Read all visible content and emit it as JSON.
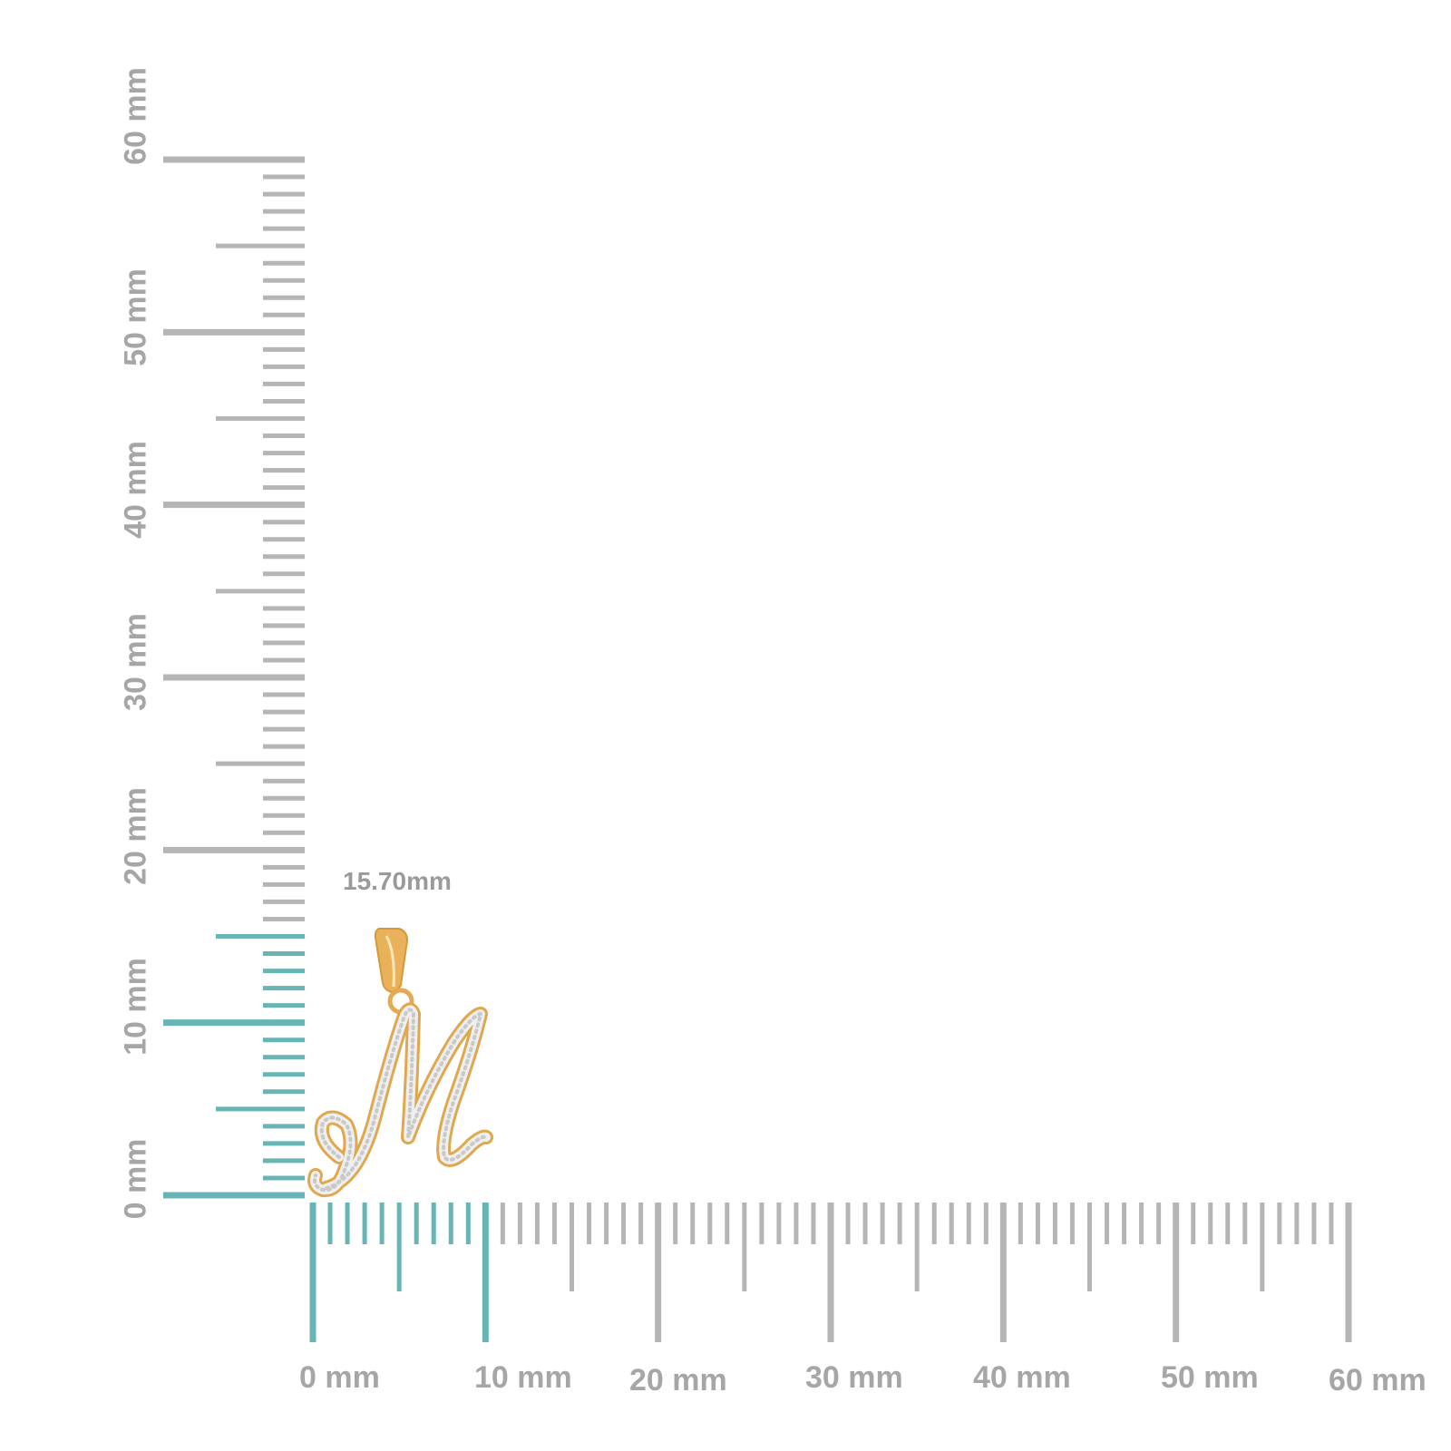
{
  "ruler": {
    "unit": "mm",
    "highlight_mm": 15.7,
    "colors": {
      "tick": "#b5b5b5",
      "highlight": "#69b5b5",
      "text": "#a6a6a6"
    }
  },
  "vertical_ruler": {
    "labels": [
      "0 mm",
      "10 mm",
      "20 mm",
      "30 mm",
      "40 mm",
      "50 mm",
      "60 mm"
    ]
  },
  "horizontal_ruler": {
    "labels": [
      "0 mm",
      "10 mm",
      "20 mm",
      "30 mm",
      "40 mm",
      "50 mm",
      "60 mm"
    ]
  },
  "dimension": {
    "label": "15.70mm"
  },
  "product": {
    "description_icon": "cursive-letter-m-pendant",
    "metal_color": "#e6b25c",
    "stone_color": "#ececec"
  }
}
